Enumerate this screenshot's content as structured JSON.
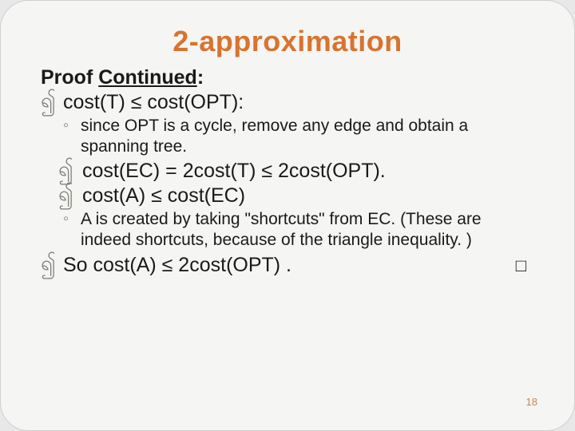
{
  "title": "2-approximation",
  "heading_prefix": "Proof ",
  "heading_underlined": "Continued",
  "heading_suffix": ":",
  "b1": "cost(T) ≤ cost(OPT):",
  "s1": "since OPT is a cycle, remove any edge and obtain a spanning tree.",
  "b2": "cost(EC) = 2cost(T) ≤ 2cost(OPT).",
  "b3": "cost(A) ≤ cost(EC)",
  "s2": "A is created by taking \"shortcuts\" from EC. (These are indeed shortcuts,  because of the triangle inequality. )",
  "b4": "So cost(A) ≤ 2cost(OPT) .",
  "qed": "□",
  "page_number": "18",
  "markers": {
    "swirl": "၍",
    "circ": "◦"
  },
  "colors": {
    "title": "#d8732f",
    "text": "#1a1a1a",
    "marker": "#7a7a76",
    "pagenum": "#c08a5a",
    "background": "#f5f5f3"
  },
  "fontsizes": {
    "title": 36,
    "body": 25,
    "sub": 21,
    "pagenum": 13
  }
}
